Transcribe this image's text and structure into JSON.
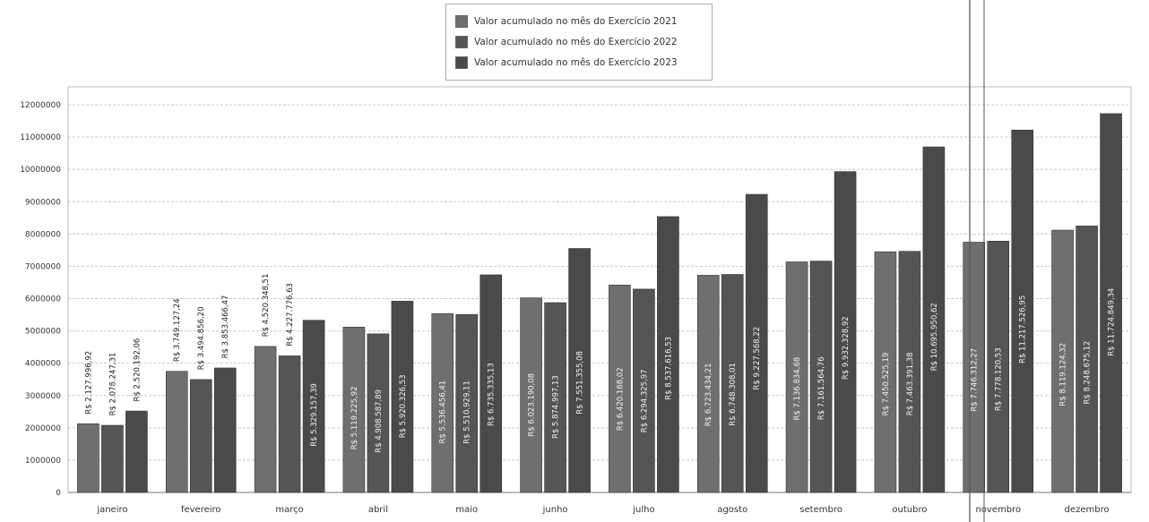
{
  "legend": {
    "items": [
      {
        "label": "Valor acumulado no mês do Exercício 2021",
        "color": "#6f6f6f"
      },
      {
        "label": "Valor acumulado no mês do Exercício 2022",
        "color": "#555555"
      },
      {
        "label": "Valor acumulado no mês do Exercício 2023",
        "color": "#4a4a4a"
      }
    ]
  },
  "chart_data": {
    "type": "bar",
    "title": "",
    "xlabel": "",
    "ylabel": "",
    "ylim": [
      0,
      12000000
    ],
    "yticks": [
      0,
      1000000,
      2000000,
      3000000,
      4000000,
      5000000,
      6000000,
      7000000,
      8000000,
      9000000,
      10000000,
      11000000,
      12000000
    ],
    "grid": true,
    "legend_position": "top-center",
    "categories": [
      "janeiro",
      "fevereiro",
      "março",
      "abril",
      "maio",
      "junho",
      "julho",
      "agosto",
      "setembro",
      "outubro",
      "novembro",
      "dezembro"
    ],
    "series": [
      {
        "name": "Valor acumulado no mês do Exercício 2021",
        "color": "#6f6f6f",
        "values": [
          2127996.92,
          3749127.24,
          4520348.51,
          5119225.92,
          5536456.41,
          6023190.08,
          6420168.02,
          6723434.21,
          7136834.68,
          7450525.19,
          7746312.27,
          8119124.32
        ],
        "labels": [
          "R$ 2.127.996,92",
          "R$ 3.749.127,24",
          "R$ 4.520.348,51",
          "R$ 5.119.225,92",
          "R$ 5.536.456,41",
          "R$ 6.023.190,08",
          "R$ 6.420.168,02",
          "R$ 6.723.434,21",
          "R$ 7.136.834,68",
          "R$ 7.450.525,19",
          "R$ 7.746.312,27",
          "R$ 8.119.124,32"
        ]
      },
      {
        "name": "Valor acumulado no mês do Exercício 2022",
        "color": "#555555",
        "values": [
          2078247.31,
          3494856.2,
          4227776.63,
          4908587.89,
          5510929.11,
          5874997.13,
          6294325.97,
          6748308.01,
          7161564.76,
          7463391.38,
          7778120.53,
          8248675.12
        ],
        "labels": [
          "R$ 2.078.247,31",
          "R$ 3.494.856,20",
          "R$ 4.227.776,63",
          "R$ 4.908.587,89",
          "R$ 5.510.929,11",
          "R$ 5.874.997,13",
          "R$ 6.294.325,97",
          "R$ 6.748.308,01",
          "R$ 7.161.564,76",
          "R$ 7.463.391,38",
          "R$ 7.778.120,53",
          "R$ 8.248.675,12"
        ]
      },
      {
        "name": "Valor acumulado no mês do Exercício 2023",
        "color": "#4a4a4a",
        "values": [
          2520192.06,
          3853466.47,
          5329157.39,
          5920326.53,
          6735335.13,
          7551355.08,
          8537616.53,
          9227568.22,
          9932328.92,
          10695950.62,
          11217526.95,
          11724849.34
        ],
        "labels": [
          "R$ 2.520.192,06",
          "R$ 3.853.466,47",
          "R$ 5.329.157,39",
          "R$ 5.920.326,53",
          "R$ 6.735.335,13",
          "R$ 7.551.355,08",
          "R$ 8.537.616,53",
          "R$ 9.227.568,22",
          "R$ 9.932.328,92",
          "R$ 10.695.950,62",
          "R$ 11.217.526,95",
          "R$ 11.724.849,34"
        ]
      }
    ]
  }
}
